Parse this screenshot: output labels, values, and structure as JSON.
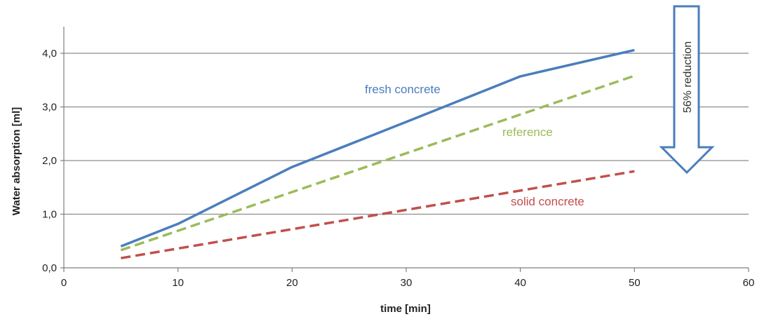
{
  "chart_data": {
    "type": "line",
    "title": "",
    "xlabel": "time [min]",
    "ylabel": "Water absorption [ml]",
    "xlim": [
      0,
      60
    ],
    "ylim": [
      0,
      4.0
    ],
    "x_ticks": [
      0,
      10,
      20,
      30,
      40,
      50,
      60
    ],
    "y_ticks": [
      "0,0",
      "1,0",
      "2,0",
      "3,0",
      "4,0"
    ],
    "y_tick_values": [
      0,
      1,
      2,
      3,
      4
    ],
    "grid": "horizontal",
    "series": [
      {
        "name": "fresh concrete",
        "style": "solid",
        "color": "#4a7ebb",
        "x": [
          5,
          10,
          20,
          30,
          40,
          50
        ],
        "y": [
          0.4,
          0.82,
          1.88,
          2.72,
          3.57,
          4.06
        ]
      },
      {
        "name": "reference",
        "style": "dashed",
        "color": "#9bbb59",
        "x": [
          5,
          50
        ],
        "y": [
          0.33,
          3.58
        ]
      },
      {
        "name": "solid concrete",
        "style": "dashed",
        "color": "#c0504d",
        "x": [
          5,
          50
        ],
        "y": [
          0.18,
          1.8
        ]
      }
    ],
    "annotation": {
      "text": "56% reduction",
      "arrow_color": "#4a7ebb"
    }
  }
}
